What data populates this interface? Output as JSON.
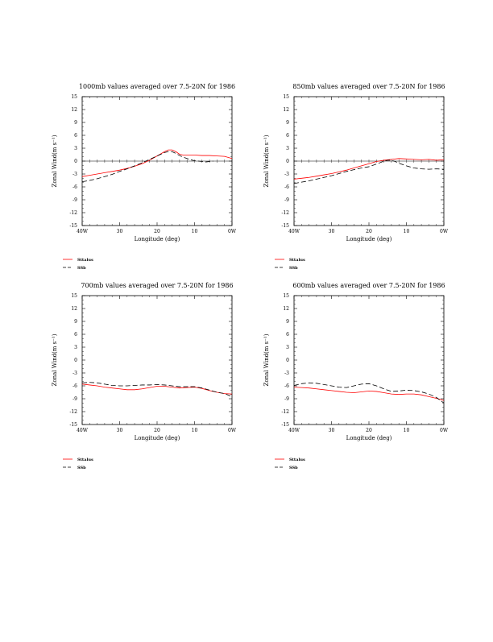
{
  "colors": {
    "model": "#ff0000",
    "ssb": "#000000"
  },
  "chart_data": [
    {
      "type": "line",
      "title": "1000mb values averaged over 7.5-20N for 1986",
      "xlabel": "Longitude (deg)",
      "ylabel": "Zonal Wind(m s⁻¹)",
      "xlim": [
        40,
        0
      ],
      "ylim": [
        -15,
        15
      ],
      "xticks": [
        {
          "v": 40,
          "label": "40W"
        },
        {
          "v": 30,
          "label": "30"
        },
        {
          "v": 20,
          "label": "20"
        },
        {
          "v": 10,
          "label": "10"
        },
        {
          "v": 0,
          "label": "0W"
        }
      ],
      "yticks": [
        -15,
        -12,
        -9,
        -6,
        -3,
        0,
        3,
        6,
        9,
        12,
        15
      ],
      "zero_line": true,
      "series": [
        {
          "name": "Sttalus",
          "style": "solid",
          "color": "#ff0000",
          "x": [
            40,
            38,
            36,
            34,
            32,
            30,
            28,
            26,
            24,
            22,
            20,
            18,
            17,
            16,
            15,
            14,
            13,
            12,
            11,
            10,
            8,
            6,
            4,
            2,
            0
          ],
          "y": [
            -3.6,
            -3.3,
            -3.0,
            -2.7,
            -2.4,
            -2.1,
            -1.7,
            -1.2,
            -0.6,
            0.2,
            1.2,
            2.2,
            2.6,
            2.6,
            2.2,
            1.6,
            1.4,
            1.4,
            1.4,
            1.4,
            1.3,
            1.3,
            1.2,
            1.1,
            0.6
          ]
        },
        {
          "name": "SSb",
          "style": "dashed",
          "color": "#000000",
          "x": [
            40,
            38,
            36,
            34,
            32,
            30,
            28,
            26,
            24,
            22,
            20,
            18,
            17,
            16,
            15,
            14,
            13,
            12,
            11,
            10,
            9,
            8,
            7,
            6,
            5
          ],
          "y": [
            -4.8,
            -4.5,
            -4.1,
            -3.6,
            -3.1,
            -2.4,
            -1.8,
            -1.1,
            -0.4,
            0.4,
            1.2,
            2.0,
            2.2,
            2.2,
            1.8,
            1.3,
            0.9,
            0.6,
            0.3,
            0.1,
            0.0,
            -0.1,
            -0.2,
            -0.1,
            0.0
          ]
        }
      ]
    },
    {
      "type": "line",
      "title": "850mb values averaged over 7.5-20N for 1986",
      "xlabel": "Longitude (deg)",
      "ylabel": "Zonal Wind(m s⁻¹)",
      "xlim": [
        40,
        0
      ],
      "ylim": [
        -15,
        15
      ],
      "xticks": [
        {
          "v": 40,
          "label": "40W"
        },
        {
          "v": 30,
          "label": "30"
        },
        {
          "v": 20,
          "label": "20"
        },
        {
          "v": 10,
          "label": "10"
        },
        {
          "v": 0,
          "label": "0W"
        }
      ],
      "yticks": [
        -15,
        -12,
        -9,
        -6,
        -3,
        0,
        3,
        6,
        9,
        12,
        15
      ],
      "zero_line": true,
      "series": [
        {
          "name": "Sttalus",
          "style": "solid",
          "color": "#ff0000",
          "x": [
            40,
            38,
            36,
            34,
            32,
            30,
            28,
            26,
            24,
            22,
            20,
            18,
            16,
            14,
            12,
            10,
            8,
            6,
            4,
            2,
            0
          ],
          "y": [
            -4.2,
            -4.0,
            -3.8,
            -3.5,
            -3.2,
            -2.9,
            -2.5,
            -2.1,
            -1.6,
            -1.1,
            -0.6,
            -0.1,
            0.2,
            0.4,
            0.6,
            0.5,
            0.4,
            0.3,
            0.4,
            0.2,
            0.3
          ]
        },
        {
          "name": "SSb",
          "style": "dashed",
          "color": "#000000",
          "x": [
            40,
            38,
            36,
            34,
            32,
            30,
            28,
            26,
            24,
            22,
            20,
            18,
            16,
            15,
            14,
            13,
            12,
            10,
            8,
            6,
            4,
            2,
            0
          ],
          "y": [
            -5.2,
            -4.9,
            -4.6,
            -4.2,
            -3.8,
            -3.4,
            -2.9,
            -2.4,
            -2.0,
            -1.6,
            -1.3,
            -0.7,
            0.0,
            0.2,
            0.2,
            -0.1,
            -0.5,
            -1.1,
            -1.6,
            -1.8,
            -1.9,
            -1.8,
            -1.9
          ]
        }
      ]
    },
    {
      "type": "line",
      "title": "700mb values averaged over 7.5-20N for 1986",
      "xlabel": "Longitude (deg)",
      "ylabel": "Zonal Wind(m s⁻¹)",
      "xlim": [
        40,
        0
      ],
      "ylim": [
        -15,
        15
      ],
      "xticks": [
        {
          "v": 40,
          "label": "40W"
        },
        {
          "v": 30,
          "label": "30"
        },
        {
          "v": 20,
          "label": "20"
        },
        {
          "v": 10,
          "label": "10"
        },
        {
          "v": 0,
          "label": "0W"
        }
      ],
      "yticks": [
        -15,
        -12,
        -9,
        -6,
        -3,
        0,
        3,
        6,
        9,
        12,
        15
      ],
      "zero_line": false,
      "series": [
        {
          "name": "Sttalus",
          "style": "solid",
          "color": "#ff0000",
          "x": [
            40,
            38,
            36,
            34,
            32,
            30,
            28,
            26,
            24,
            22,
            20,
            18,
            16,
            14,
            12,
            10,
            8,
            6,
            4,
            2,
            0
          ],
          "y": [
            -5.6,
            -5.8,
            -6.0,
            -6.3,
            -6.5,
            -6.7,
            -6.9,
            -6.9,
            -6.7,
            -6.4,
            -6.1,
            -6.1,
            -6.3,
            -6.5,
            -6.4,
            -6.3,
            -6.6,
            -7.1,
            -7.5,
            -7.8,
            -7.9
          ]
        },
        {
          "name": "SSb",
          "style": "dashed",
          "color": "#000000",
          "x": [
            40,
            38,
            36,
            34,
            32,
            30,
            28,
            26,
            24,
            22,
            20,
            18,
            16,
            14,
            12,
            10,
            8,
            6,
            4,
            2,
            0
          ],
          "y": [
            -5.3,
            -5.2,
            -5.3,
            -5.6,
            -5.9,
            -6.0,
            -6.0,
            -5.9,
            -5.8,
            -5.8,
            -5.7,
            -5.8,
            -6.0,
            -6.2,
            -6.2,
            -6.2,
            -6.5,
            -7.0,
            -7.5,
            -7.8,
            -8.5
          ]
        }
      ]
    },
    {
      "type": "line",
      "title": "600mb values averaged over 7.5-20N for 1986",
      "xlabel": "Longitude (deg)",
      "ylabel": "Zonal Wind(m s⁻¹)",
      "xlim": [
        40,
        0
      ],
      "ylim": [
        -15,
        15
      ],
      "xticks": [
        {
          "v": 40,
          "label": "40W"
        },
        {
          "v": 30,
          "label": "30"
        },
        {
          "v": 20,
          "label": "20"
        },
        {
          "v": 10,
          "label": "10"
        },
        {
          "v": 0,
          "label": "0W"
        }
      ],
      "yticks": [
        -15,
        -12,
        -9,
        -6,
        -3,
        0,
        3,
        6,
        9,
        12,
        15
      ],
      "zero_line": false,
      "series": [
        {
          "name": "Sttalus",
          "style": "solid",
          "color": "#ff0000",
          "x": [
            40,
            38,
            36,
            34,
            32,
            30,
            28,
            26,
            24,
            22,
            20,
            18,
            16,
            14,
            12,
            10,
            8,
            6,
            4,
            2,
            0
          ],
          "y": [
            -6.3,
            -6.4,
            -6.5,
            -6.7,
            -6.9,
            -7.1,
            -7.3,
            -7.5,
            -7.6,
            -7.4,
            -7.2,
            -7.3,
            -7.6,
            -7.9,
            -8.0,
            -7.9,
            -7.9,
            -8.1,
            -8.5,
            -8.9,
            -9.4
          ]
        },
        {
          "name": "SSb",
          "style": "dashed",
          "color": "#000000",
          "x": [
            40,
            38,
            36,
            34,
            32,
            30,
            28,
            26,
            24,
            22,
            20,
            18,
            16,
            14,
            12,
            10,
            8,
            6,
            4,
            2,
            0
          ],
          "y": [
            -5.9,
            -5.5,
            -5.3,
            -5.4,
            -5.7,
            -6.0,
            -6.3,
            -6.4,
            -6.0,
            -5.6,
            -5.5,
            -6.0,
            -6.7,
            -7.3,
            -7.2,
            -7.0,
            -7.1,
            -7.4,
            -7.9,
            -8.7,
            -10.0
          ]
        }
      ]
    }
  ]
}
